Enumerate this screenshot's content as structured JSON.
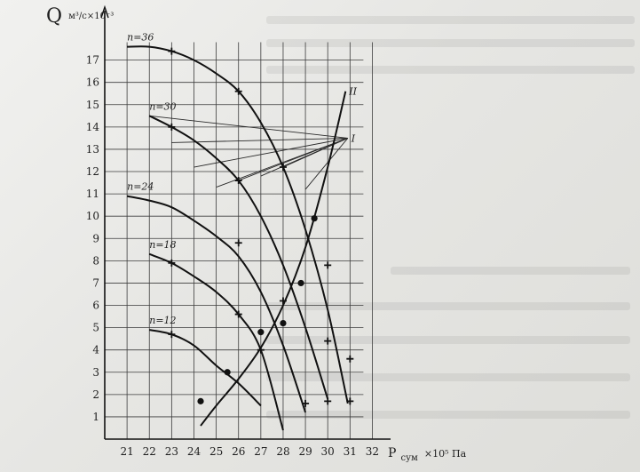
{
  "chart_data": {
    "type": "line",
    "ylabel": {
      "symbol": "Q",
      "unit": "м³/с×10⁻³"
    },
    "xlabel": {
      "symbol": "P",
      "subscript": "сум",
      "unit": "×10⁵ Па"
    },
    "xlim": [
      20,
      32.5
    ],
    "ylim": [
      0,
      18.5
    ],
    "x_ticks": [
      21,
      22,
      23,
      24,
      25,
      26,
      27,
      28,
      29,
      30,
      31,
      32
    ],
    "y_ticks": [
      1,
      2,
      3,
      4,
      5,
      6,
      7,
      8,
      9,
      10,
      11,
      12,
      13,
      14,
      15,
      16,
      17
    ],
    "grid": true,
    "series": [
      {
        "name": "n=36",
        "points": [
          [
            21.0,
            17.6
          ],
          [
            22.0,
            17.6
          ],
          [
            23.0,
            17.4
          ],
          [
            24.0,
            17.0
          ],
          [
            25.0,
            16.4
          ],
          [
            26.0,
            15.6
          ],
          [
            27.0,
            14.2
          ],
          [
            28.0,
            12.2
          ],
          [
            29.0,
            9.4
          ],
          [
            30.0,
            5.8
          ],
          [
            30.9,
            1.6
          ]
        ]
      },
      {
        "name": "n=30",
        "points": [
          [
            22.0,
            14.5
          ],
          [
            23.0,
            14.0
          ],
          [
            24.0,
            13.4
          ],
          [
            25.0,
            12.6
          ],
          [
            26.0,
            11.6
          ],
          [
            27.0,
            10.0
          ],
          [
            28.0,
            7.8
          ],
          [
            29.0,
            5.0
          ],
          [
            30.0,
            1.8
          ]
        ]
      },
      {
        "name": "n=24",
        "points": [
          [
            21.0,
            10.9
          ],
          [
            22.0,
            10.7
          ],
          [
            23.0,
            10.4
          ],
          [
            24.0,
            9.8
          ],
          [
            25.0,
            9.1
          ],
          [
            26.0,
            8.2
          ],
          [
            27.0,
            6.6
          ],
          [
            28.0,
            4.2
          ],
          [
            29.0,
            1.2
          ]
        ]
      },
      {
        "name": "n=18",
        "points": [
          [
            22.0,
            8.3
          ],
          [
            23.0,
            7.9
          ],
          [
            24.0,
            7.3
          ],
          [
            25.0,
            6.6
          ],
          [
            26.0,
            5.6
          ],
          [
            27.0,
            4.0
          ],
          [
            28.0,
            0.4
          ]
        ]
      },
      {
        "name": "n=12",
        "points": [
          [
            22.0,
            4.9
          ],
          [
            23.0,
            4.7
          ],
          [
            24.0,
            4.2
          ],
          [
            25.0,
            3.3
          ],
          [
            26.0,
            2.5
          ],
          [
            27.0,
            1.5
          ]
        ]
      }
    ],
    "curve_II": {
      "name": "II",
      "points": [
        [
          24.3,
          0.6
        ],
        [
          25.0,
          1.5
        ],
        [
          26.0,
          2.7
        ],
        [
          27.0,
          4.1
        ],
        [
          28.0,
          6.0
        ],
        [
          29.0,
          8.6
        ],
        [
          30.0,
          12.2
        ],
        [
          30.8,
          15.6
        ]
      ]
    },
    "markers_cross": [
      [
        23,
        17.4
      ],
      [
        26,
        15.6
      ],
      [
        23,
        14.0
      ],
      [
        26,
        11.6
      ],
      [
        26,
        8.8
      ],
      [
        26,
        5.6
      ],
      [
        23,
        7.9
      ],
      [
        23,
        4.7
      ],
      [
        28,
        12.2
      ],
      [
        28,
        6.2
      ],
      [
        27,
        4.0
      ],
      [
        29,
        1.6
      ],
      [
        30,
        4.4
      ],
      [
        30,
        1.7
      ],
      [
        31,
        1.7
      ],
      [
        31,
        3.6
      ],
      [
        30,
        7.8
      ]
    ],
    "markers_dot": [
      [
        24.3,
        1.7
      ],
      [
        25.5,
        3.0
      ],
      [
        27.0,
        4.8
      ],
      [
        28.0,
        5.2
      ],
      [
        28.8,
        7.0
      ],
      [
        29.4,
        9.9
      ]
    ],
    "annotation_I": {
      "label": "I",
      "at": [
        30.9,
        13.5
      ],
      "lines_from": [
        [
          22.0,
          14.5
        ],
        [
          23.0,
          13.3
        ],
        [
          24.0,
          12.2
        ],
        [
          25.0,
          11.3
        ],
        [
          26.0,
          11.6
        ],
        [
          27.0,
          11.8
        ],
        [
          28.0,
          12.2
        ],
        [
          29.0,
          11.2
        ]
      ]
    }
  }
}
